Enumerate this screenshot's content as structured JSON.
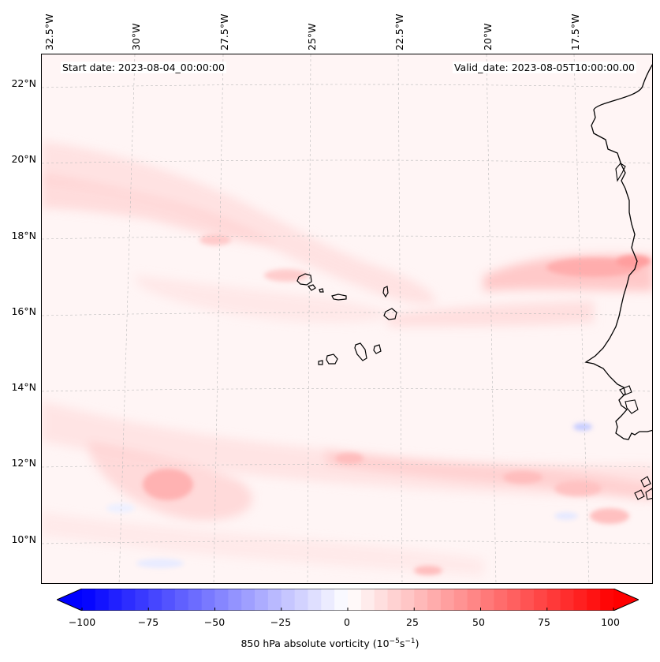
{
  "map": {
    "start_date": "Start date: 2023-08-04_00:00:00",
    "valid_date": "Valid_date: 2023-08-05T10:00:00.00",
    "lon_labels": [
      "32.5°W",
      "30°W",
      "27.5°W",
      "25°W",
      "22.5°W",
      "20°W",
      "17.5°W"
    ],
    "lat_labels": [
      "22°N",
      "20°N",
      "18°N",
      "16°N",
      "14°N",
      "12°N",
      "10°N"
    ],
    "colors": {
      "positive": "#ff0000",
      "negative": "#0000ff",
      "coast": "#000000",
      "grid": "#bbbbbb"
    }
  },
  "colorbar": {
    "ticks": [
      "−100",
      "−75",
      "−50",
      "−25",
      "0",
      "25",
      "50",
      "75",
      "100"
    ],
    "tick_values": [
      -100,
      -75,
      -50,
      -25,
      0,
      25,
      50,
      75,
      100
    ],
    "min": -100,
    "max": 100,
    "label_prefix": "850 hPa absolute vorticity (10",
    "label_exp1": "−5",
    "label_mid": "s",
    "label_exp2": "−1",
    "label_suffix": ")"
  }
}
